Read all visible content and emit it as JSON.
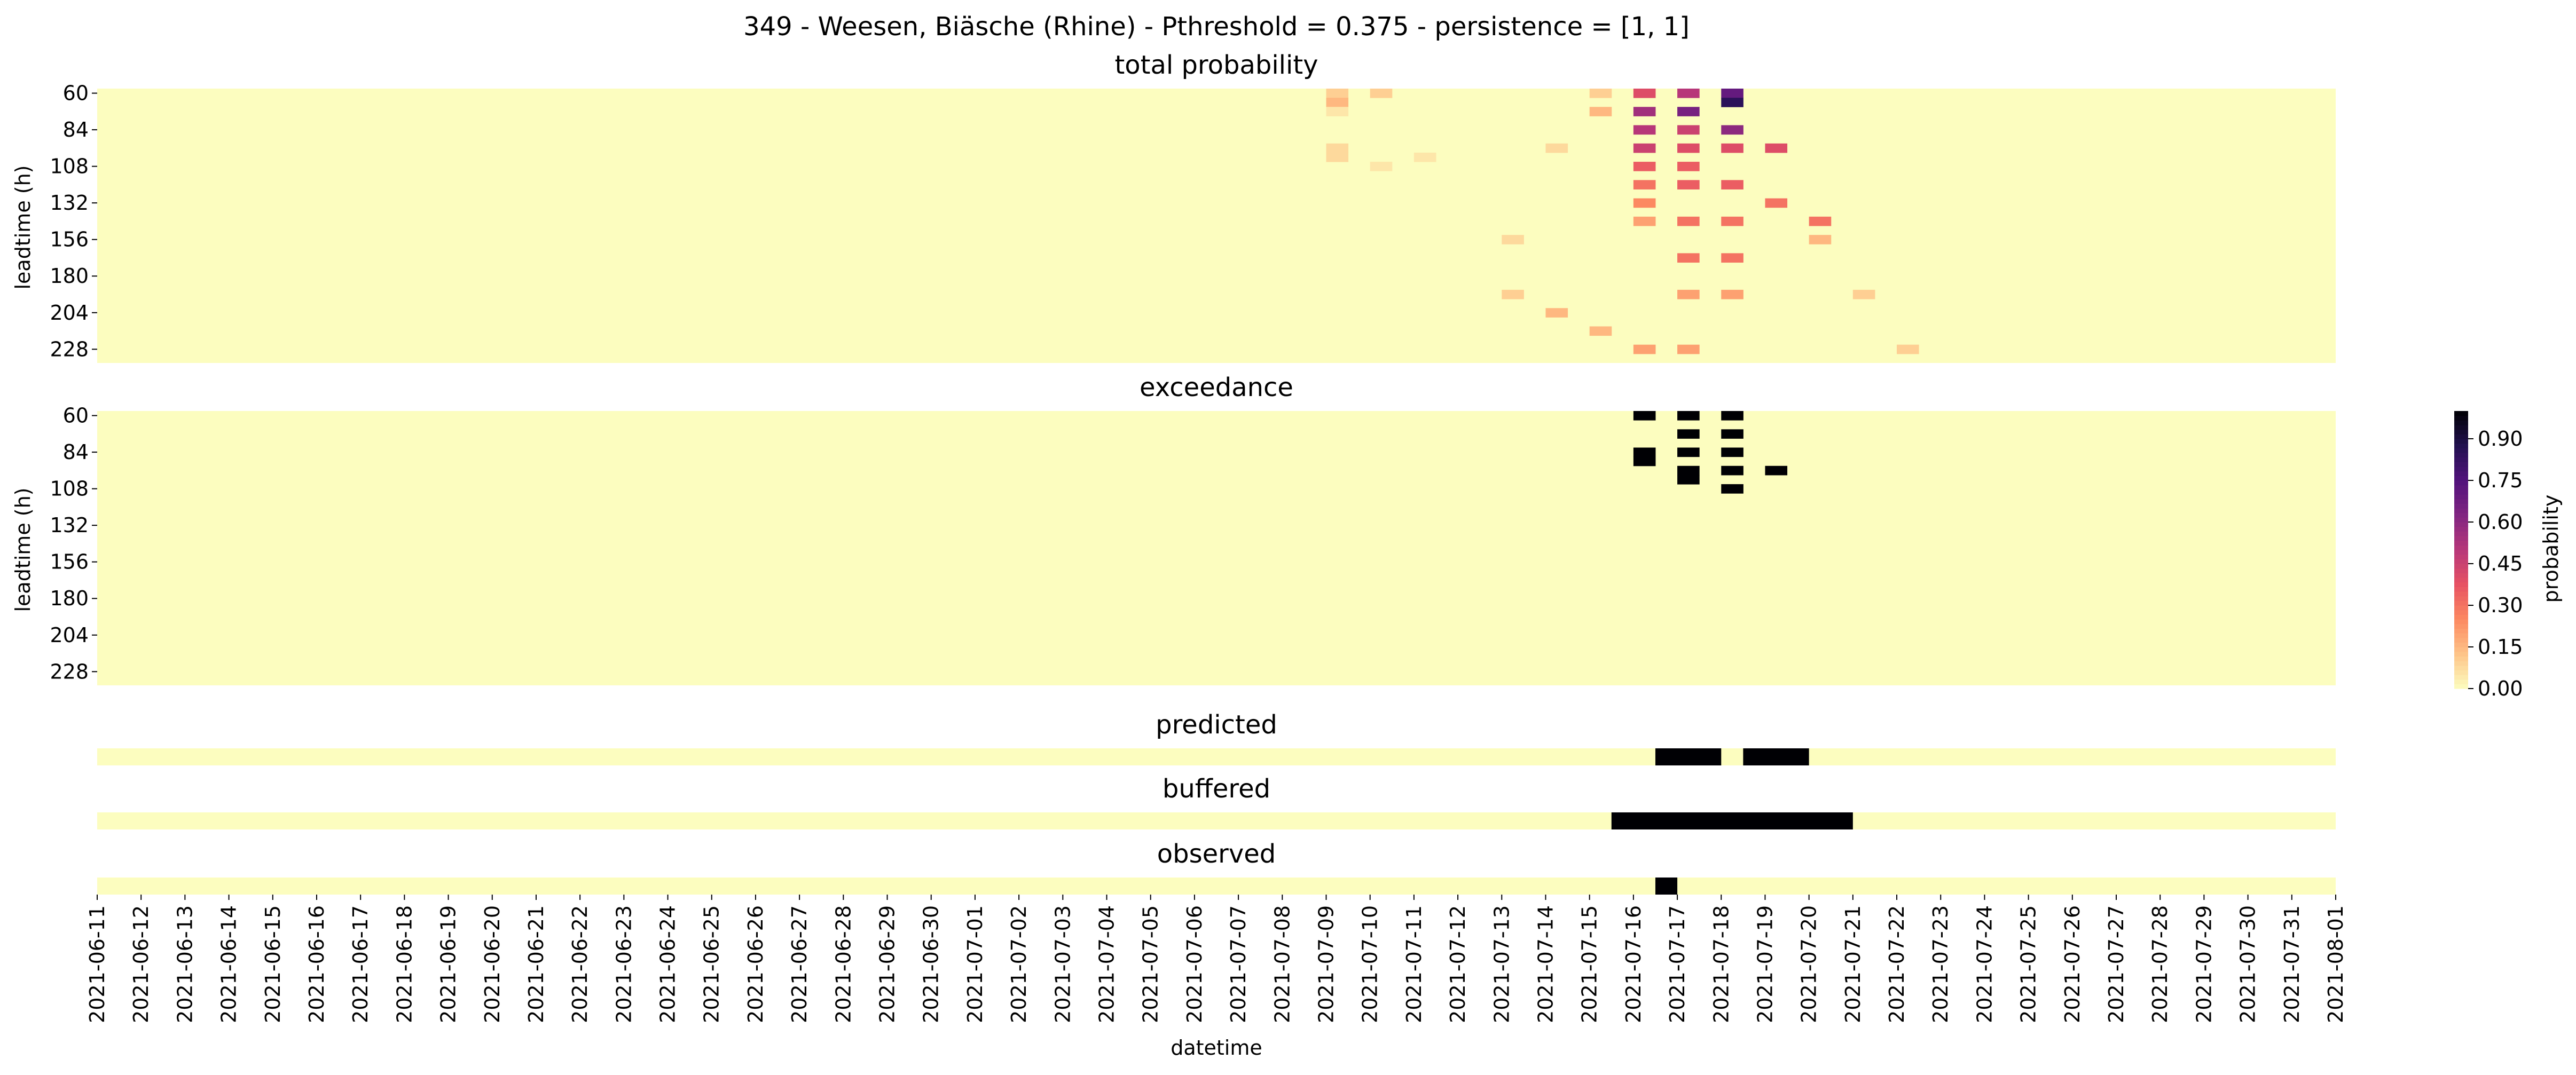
{
  "title": "349 - Weesen, Biäsche (Rhine) - Pthreshold = 0.375 - persistence = [1, 1]",
  "colors": {
    "low": "#fcfdbf",
    "high": "#000004",
    "background": "#ffffff"
  },
  "chart_data": [
    {
      "type": "heatmap",
      "title": "total probability",
      "ylabel": "leadtime (h)",
      "yticks": [
        "60",
        "84",
        "108",
        "132",
        "156",
        "180",
        "204",
        "228"
      ],
      "leadtime_range": [
        60,
        240
      ],
      "date_range": [
        "2021-06-11",
        "2021-08-01"
      ],
      "cells_probability": [
        [
          "2021-07-09",
          60,
          0.1
        ],
        [
          "2021-07-09",
          66,
          0.15
        ],
        [
          "2021-07-10",
          60,
          0.1
        ],
        [
          "2021-07-09",
          72,
          0.05
        ],
        [
          "2021-07-09",
          96,
          0.08
        ],
        [
          "2021-07-09",
          102,
          0.08
        ],
        [
          "2021-07-10",
          108,
          0.05
        ],
        [
          "2021-07-11",
          102,
          0.05
        ],
        [
          "2021-07-15",
          60,
          0.1
        ],
        [
          "2021-07-15",
          72,
          0.15
        ],
        [
          "2021-07-16",
          60,
          0.4
        ],
        [
          "2021-07-16",
          72,
          0.55
        ],
        [
          "2021-07-16",
          84,
          0.5
        ],
        [
          "2021-07-16",
          96,
          0.45
        ],
        [
          "2021-07-16",
          108,
          0.35
        ],
        [
          "2021-07-16",
          120,
          0.3
        ],
        [
          "2021-07-16",
          132,
          0.25
        ],
        [
          "2021-07-16",
          144,
          0.2
        ],
        [
          "2021-07-17",
          60,
          0.5
        ],
        [
          "2021-07-17",
          72,
          0.65
        ],
        [
          "2021-07-17",
          84,
          0.45
        ],
        [
          "2021-07-17",
          96,
          0.4
        ],
        [
          "2021-07-17",
          108,
          0.35
        ],
        [
          "2021-07-17",
          120,
          0.35
        ],
        [
          "2021-07-17",
          144,
          0.3
        ],
        [
          "2021-07-17",
          168,
          0.3
        ],
        [
          "2021-07-17",
          192,
          0.2
        ],
        [
          "2021-07-18",
          60,
          0.7
        ],
        [
          "2021-07-18",
          66,
          0.85
        ],
        [
          "2021-07-18",
          84,
          0.6
        ],
        [
          "2021-07-18",
          96,
          0.4
        ],
        [
          "2021-07-18",
          120,
          0.35
        ],
        [
          "2021-07-18",
          144,
          0.3
        ],
        [
          "2021-07-18",
          168,
          0.3
        ],
        [
          "2021-07-18",
          192,
          0.2
        ],
        [
          "2021-07-19",
          96,
          0.4
        ],
        [
          "2021-07-19",
          132,
          0.3
        ],
        [
          "2021-07-20",
          144,
          0.3
        ],
        [
          "2021-07-20",
          156,
          0.15
        ],
        [
          "2021-07-21",
          192,
          0.1
        ],
        [
          "2021-07-22",
          228,
          0.1
        ],
        [
          "2021-07-14",
          96,
          0.08
        ],
        [
          "2021-07-13",
          156,
          0.08
        ],
        [
          "2021-07-13",
          192,
          0.1
        ],
        [
          "2021-07-14",
          204,
          0.15
        ],
        [
          "2021-07-15",
          216,
          0.15
        ],
        [
          "2021-07-16",
          228,
          0.2
        ],
        [
          "2021-07-17",
          228,
          0.2
        ]
      ]
    },
    {
      "type": "heatmap",
      "title": "exceedance",
      "ylabel": "leadtime (h)",
      "yticks": [
        "60",
        "84",
        "108",
        "132",
        "156",
        "180",
        "204",
        "228"
      ],
      "leadtime_range": [
        60,
        240
      ],
      "value_exceed": 1,
      "cells_exceed": [
        [
          "2021-07-16",
          60
        ],
        [
          "2021-07-16",
          84
        ],
        [
          "2021-07-16",
          90
        ],
        [
          "2021-07-17",
          72
        ],
        [
          "2021-07-17",
          96
        ],
        [
          "2021-07-17",
          102
        ],
        [
          "2021-07-17",
          60
        ],
        [
          "2021-07-17",
          84
        ],
        [
          "2021-07-18",
          60
        ],
        [
          "2021-07-18",
          72
        ],
        [
          "2021-07-18",
          84
        ],
        [
          "2021-07-18",
          96
        ],
        [
          "2021-07-18",
          108
        ],
        [
          "2021-07-19",
          96
        ]
      ]
    },
    {
      "type": "heatmap",
      "title": "predicted",
      "value_true": 1,
      "ranges_true": [
        [
          "2021-07-16",
          "2021-07-17"
        ],
        [
          "2021-07-18",
          "2021-07-19"
        ]
      ]
    },
    {
      "type": "heatmap",
      "title": "buffered",
      "value_true": 1,
      "ranges_true": [
        [
          "2021-07-15",
          "2021-07-20"
        ]
      ]
    },
    {
      "type": "heatmap",
      "title": "observed",
      "value_true": 1,
      "ranges_true": [
        [
          "2021-07-16",
          "2021-07-16"
        ]
      ]
    }
  ],
  "xaxis": {
    "label": "datetime",
    "ticks": [
      "2021-06-11",
      "2021-06-12",
      "2021-06-13",
      "2021-06-14",
      "2021-06-15",
      "2021-06-16",
      "2021-06-17",
      "2021-06-18",
      "2021-06-19",
      "2021-06-20",
      "2021-06-21",
      "2021-06-22",
      "2021-06-23",
      "2021-06-24",
      "2021-06-25",
      "2021-06-26",
      "2021-06-27",
      "2021-06-28",
      "2021-06-29",
      "2021-06-30",
      "2021-07-01",
      "2021-07-02",
      "2021-07-03",
      "2021-07-04",
      "2021-07-05",
      "2021-07-06",
      "2021-07-07",
      "2021-07-08",
      "2021-07-09",
      "2021-07-10",
      "2021-07-11",
      "2021-07-12",
      "2021-07-13",
      "2021-07-14",
      "2021-07-15",
      "2021-07-16",
      "2021-07-17",
      "2021-07-18",
      "2021-07-19",
      "2021-07-20",
      "2021-07-21",
      "2021-07-22",
      "2021-07-23",
      "2021-07-24",
      "2021-07-25",
      "2021-07-26",
      "2021-07-27",
      "2021-07-28",
      "2021-07-29",
      "2021-07-30",
      "2021-07-31",
      "2021-08-01"
    ]
  },
  "colorbar": {
    "label": "probability",
    "ticks": [
      "0.00",
      "0.15",
      "0.30",
      "0.45",
      "0.60",
      "0.75",
      "0.90"
    ],
    "range": [
      0,
      1
    ],
    "stops": [
      "#fcfdbf",
      "#fec488",
      "#fc8961",
      "#e75263",
      "#b73779",
      "#812581",
      "#51127c",
      "#221150",
      "#000004"
    ]
  }
}
